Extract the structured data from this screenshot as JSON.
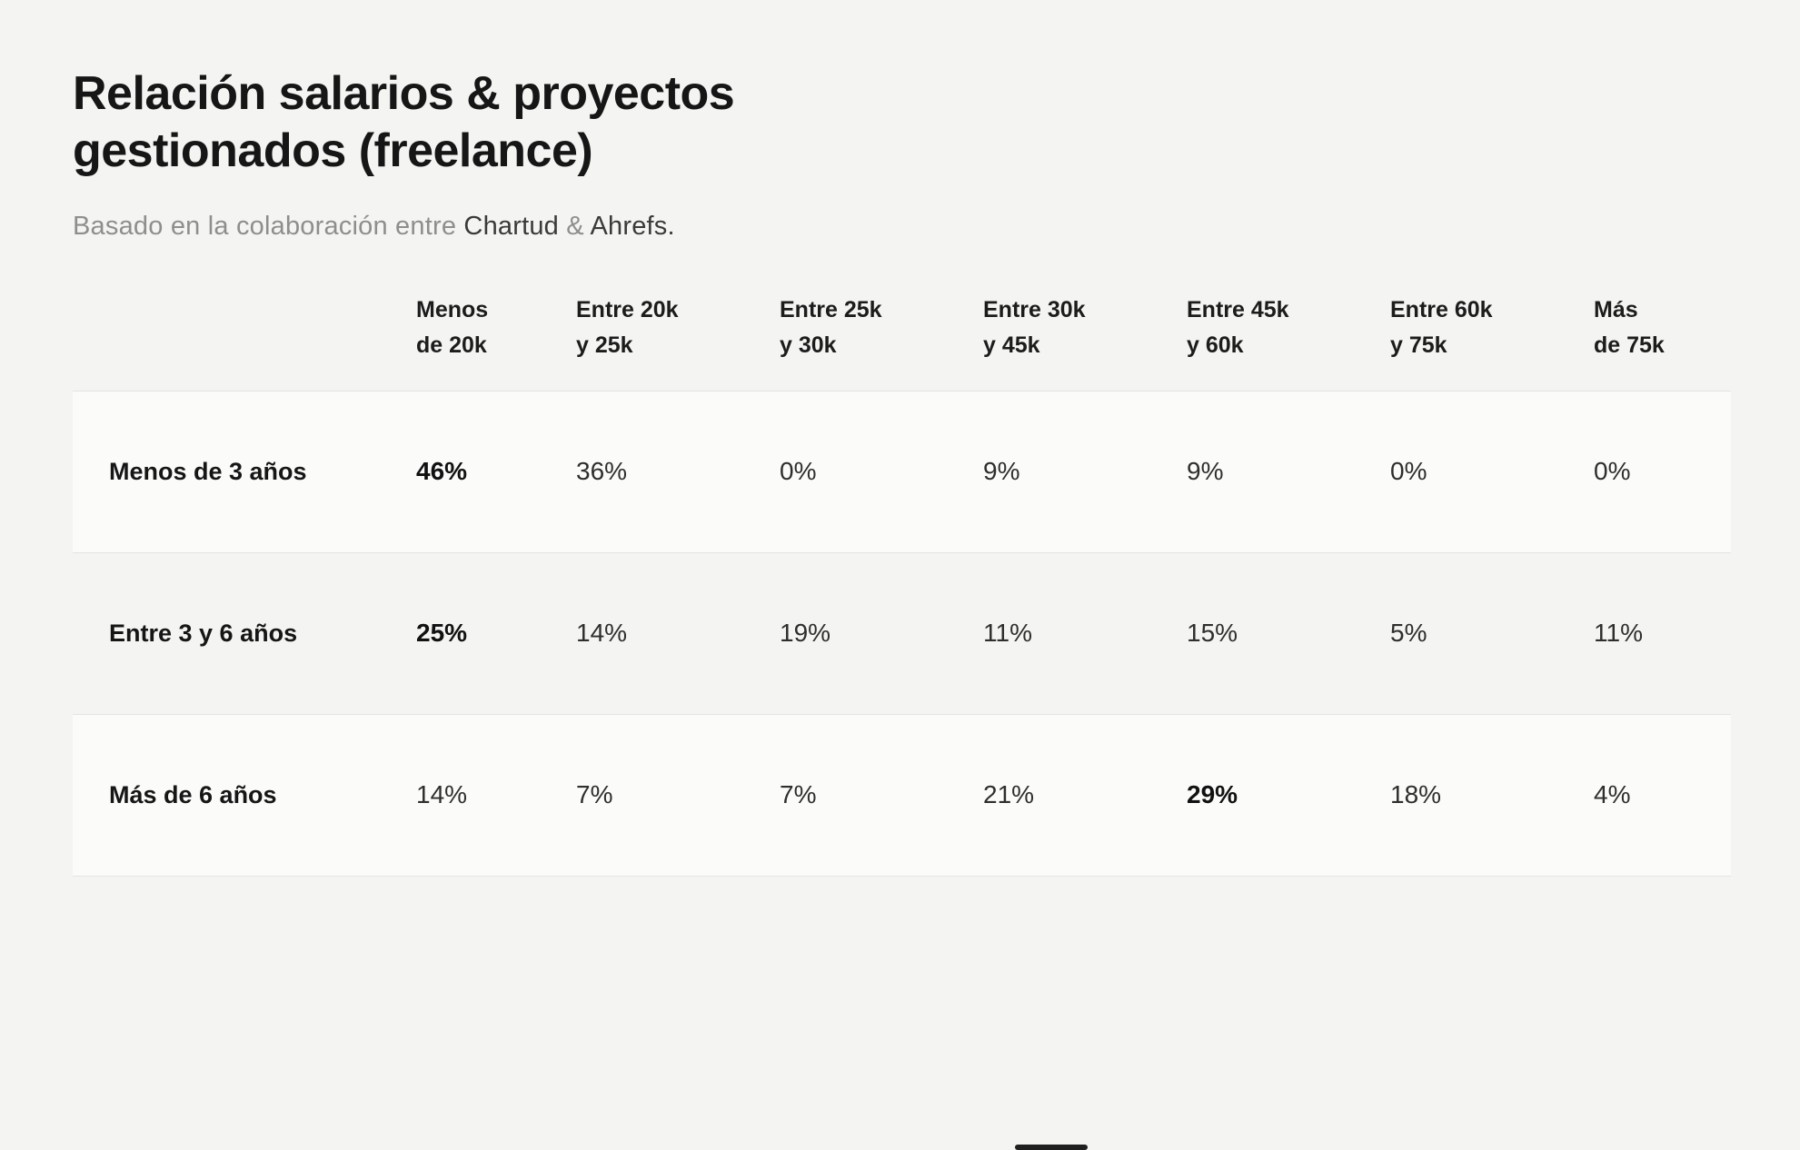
{
  "header": {
    "title_line1": "Relación salarios & proyectos",
    "title_line2": "gestionados (freelance)",
    "subtitle_prefix": "Basado en la colaboración entre ",
    "brand1": "Chartud",
    "subtitle_connector": " & ",
    "brand2": "Ahrefs",
    "subtitle_suffix": "."
  },
  "chart_data": {
    "type": "table",
    "title": "Relación salarios & proyectos gestionados (freelance)",
    "subtitle": "Basado en la colaboración entre Chartud & Ahrefs.",
    "unit": "percent",
    "columns": [
      {
        "line1": "Menos",
        "line2": "de 20k"
      },
      {
        "line1": "Entre 20k",
        "line2": "y 25k"
      },
      {
        "line1": "Entre 25k",
        "line2": "y 30k"
      },
      {
        "line1": "Entre 30k",
        "line2": "y 45k"
      },
      {
        "line1": "Entre 45k",
        "line2": "y 60k"
      },
      {
        "line1": "Entre 60k",
        "line2": "y 75k"
      },
      {
        "line1": "Más",
        "line2": "de 75k"
      }
    ],
    "rows": [
      {
        "label": "Menos de 3 años",
        "values": [
          "46%",
          "36%",
          "0%",
          "9%",
          "9%",
          "0%",
          "0%"
        ],
        "highlight_index": 0
      },
      {
        "label": "Entre 3 y 6 años",
        "values": [
          "25%",
          "14%",
          "19%",
          "11%",
          "15%",
          "5%",
          "11%"
        ],
        "highlight_index": 0
      },
      {
        "label": "Más de 6 años",
        "values": [
          "14%",
          "7%",
          "7%",
          "21%",
          "29%",
          "18%",
          "4%"
        ],
        "highlight_index": 4
      }
    ]
  },
  "colors": {
    "background": "#f4f4f2",
    "row_highlight_background": "#fbfbfa",
    "border": "#e4e4e2",
    "text_primary": "#161616",
    "text_secondary": "#8e8e8c"
  }
}
